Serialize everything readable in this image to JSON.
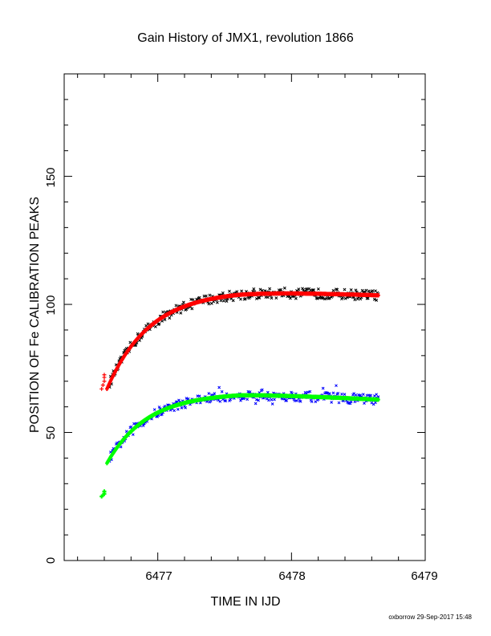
{
  "chart_data": {
    "type": "scatter",
    "title": "Gain History of JMX1, revolution 1866",
    "xlabel": "TIME IN IJD",
    "ylabel": "POSITION OF Fe CALIBRATION PEAKS",
    "xlim": [
      6476.3,
      6479.0
    ],
    "ylim": [
      0,
      190
    ],
    "xticks": [
      "6477",
      "6478",
      "6479"
    ],
    "yticks": [
      "0",
      "50",
      "100",
      "150"
    ],
    "grid": false,
    "series": [
      {
        "marker": "x",
        "color": "#000000",
        "base": 67,
        "amp": 38.5,
        "tau": 0.32,
        "t0": 6476.62,
        "spread": 1.6,
        "noise": 2.0
      },
      {
        "marker": "line",
        "color": "#ff0000",
        "base": 67,
        "amp": 38.5,
        "tau": 0.32,
        "t0": 6476.62,
        "spread": 0,
        "noise": 0
      },
      {
        "marker": "x",
        "color": "#0000ff",
        "base": 38,
        "amp": 27.5,
        "tau": 0.3,
        "t0": 6476.62,
        "spread": 1.5,
        "noise": 2.0
      },
      {
        "marker": "line",
        "color": "#00ff00",
        "base": 38,
        "amp": 27.5,
        "tau": 0.3,
        "t0": 6476.62,
        "spread": 0,
        "noise": 0
      }
    ],
    "xrange_data": [
      6476.58,
      6478.65
    ],
    "early_points": {
      "red": [
        [
          6476.58,
          67
        ],
        [
          6476.59,
          68.5
        ],
        [
          6476.6,
          70
        ],
        [
          6476.6,
          71.5
        ],
        [
          6476.6,
          72.5
        ]
      ],
      "green": [
        [
          6476.58,
          25
        ],
        [
          6476.59,
          25.5
        ],
        [
          6476.6,
          26
        ],
        [
          6476.6,
          26.8
        ],
        [
          6476.6,
          27
        ]
      ]
    }
  },
  "footer": {
    "credit": "oxborrow 29-Sep-2017 15:48"
  }
}
